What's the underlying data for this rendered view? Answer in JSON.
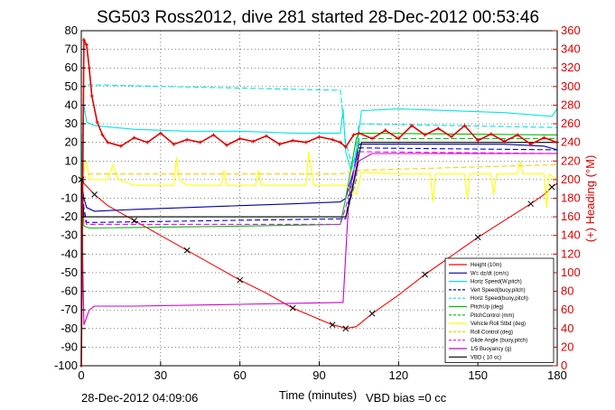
{
  "chart_data": {
    "type": "line",
    "title": "SG503 Ross2012, dive 281 started 28-Dec-2012 00:53:46",
    "xlabel": "Time (minutes)",
    "ylabel_right": "(+) Heading (°M)",
    "xlim": [
      0,
      180
    ],
    "ylim_left": [
      -100,
      80
    ],
    "ylim_right": [
      0,
      360
    ],
    "xticks": [
      0,
      30,
      60,
      90,
      120,
      150,
      180
    ],
    "yticks_left": [
      -100,
      -90,
      -80,
      -70,
      -60,
      -50,
      -40,
      -30,
      -20,
      -10,
      0,
      10,
      20,
      30,
      40,
      50,
      60,
      70,
      80
    ],
    "yticks_right": [
      0,
      20,
      40,
      60,
      80,
      100,
      120,
      140,
      160,
      180,
      200,
      220,
      240,
      260,
      280,
      300,
      320,
      340,
      360
    ],
    "legend_position": "bottom-right",
    "grid": true,
    "series": [
      {
        "name": "Height (10m)",
        "color": "#ff0000",
        "dash": "",
        "x": [
          0,
          1,
          5,
          10,
          20,
          30,
          40,
          50,
          60,
          70,
          80,
          90,
          95,
          98,
          100,
          104,
          110,
          120,
          130,
          140,
          150,
          160,
          170,
          175,
          178,
          180
        ],
        "y": [
          0,
          -2,
          -8,
          -14,
          -22,
          -30,
          -38,
          -46,
          -54,
          -61,
          -69,
          -75,
          -78,
          -79,
          -80,
          -79,
          -72,
          -62,
          -51,
          -41,
          -31,
          -22,
          -13,
          -8,
          -4,
          -2
        ]
      },
      {
        "name": "W= dz/dt (cm/s)",
        "color": "#0000aa",
        "dash": "",
        "x": [
          0,
          1,
          2,
          5,
          20,
          40,
          60,
          80,
          98,
          100,
          103,
          105,
          120,
          140,
          160,
          175,
          180
        ],
        "y": [
          0,
          -10,
          -15,
          -17,
          -16,
          -15,
          -14,
          -13,
          -12,
          -10,
          5,
          19,
          19,
          19,
          19,
          18,
          16
        ]
      },
      {
        "name": "Horiz Speed(W,pitch)",
        "color": "#00e5e5",
        "dash": "",
        "x": [
          0,
          1,
          2,
          5,
          20,
          40,
          60,
          80,
          98,
          99,
          100,
          102,
          104,
          106,
          120,
          140,
          160,
          178,
          180
        ],
        "y": [
          0,
          40,
          31,
          29,
          27,
          26,
          26,
          25,
          25,
          38,
          15,
          5,
          15,
          37,
          38,
          37,
          36,
          34,
          38
        ]
      },
      {
        "name": "Vert Speed(buoy,pitch)",
        "color": "#0000ff",
        "dash": "6,3",
        "x": [
          0,
          1,
          2,
          5,
          100,
          103,
          105,
          180
        ],
        "y": [
          0,
          -15,
          -23,
          -23,
          -21,
          5,
          17,
          16
        ]
      },
      {
        "name": "Horiz Speed(buoy,pitch)",
        "color": "#00e5e5",
        "dash": "6,3",
        "x": [
          0,
          1,
          2,
          98,
          100,
          103,
          105,
          180
        ],
        "y": [
          0,
          50,
          51,
          48,
          20,
          5,
          30,
          28
        ]
      },
      {
        "name": "PitchUp (deg)",
        "color": "#00c000",
        "dash": "",
        "x": [
          0,
          1,
          3,
          60,
          98,
          100,
          104,
          105,
          180
        ],
        "y": [
          0,
          -25,
          -26,
          -25,
          -24,
          -10,
          22,
          25,
          24
        ]
      },
      {
        "name": "PitchControl (mm)",
        "color": "#00c000",
        "dash": "6,3",
        "x": [
          0,
          1,
          3,
          98,
          100,
          104,
          105,
          180
        ],
        "y": [
          0,
          -20,
          -20,
          -20,
          -20,
          0,
          22,
          22
        ]
      },
      {
        "name": "Vehicle Roll Stbd (deg)",
        "color": "#ffff00",
        "dash": "",
        "x": [
          0,
          2,
          3,
          10,
          12,
          14,
          20,
          35,
          36,
          37,
          40,
          53,
          54,
          55,
          58,
          66,
          67,
          68,
          80,
          85,
          86,
          88,
          98,
          100,
          104,
          106,
          120,
          132,
          133,
          134,
          145,
          146,
          147,
          155,
          156,
          157,
          165,
          166,
          167,
          175,
          176,
          177,
          180
        ],
        "y": [
          0,
          10,
          0,
          0,
          8,
          0,
          -3,
          -3,
          12,
          0,
          -3,
          -3,
          5,
          -3,
          -3,
          -3,
          5,
          -3,
          -3,
          -3,
          15,
          -3,
          -3,
          -3,
          -8,
          4,
          3,
          3,
          -12,
          3,
          3,
          -10,
          3,
          3,
          -8,
          3,
          3,
          10,
          3,
          3,
          -15,
          3,
          0
        ]
      },
      {
        "name": "Roll Control (deg)",
        "color": "#ffcc00",
        "dash": "6,3",
        "x": [
          0,
          3,
          98,
          104,
          180
        ],
        "y": [
          0,
          3,
          3,
          5,
          8
        ]
      },
      {
        "name": "Glide Angle (buoy,pitch)",
        "color": "#ff00ff",
        "dash": "6,3",
        "x": [
          0,
          1,
          2,
          98,
          100,
          104,
          105,
          180
        ],
        "y": [
          0,
          -20,
          -24,
          -24,
          -15,
          10,
          15,
          14
        ]
      },
      {
        "name": "1/5 Buoyancy (g)",
        "color": "#cc00cc",
        "dash": "",
        "x": [
          0,
          1,
          3,
          5,
          20,
          60,
          98,
          99,
          101,
          105,
          110,
          180
        ],
        "y": [
          0,
          -78,
          -70,
          -68,
          -68,
          -67,
          -66,
          -66,
          -15,
          10,
          14,
          14
        ]
      },
      {
        "name": "VBD ( 10 cc)",
        "color": "#000000",
        "dash": "",
        "x": [
          0,
          1,
          100,
          101,
          106,
          180
        ],
        "y": [
          0,
          -20,
          -20,
          -15,
          20,
          20
        ]
      },
      {
        "name": "Heading",
        "color": "#e00000",
        "dash": "",
        "axis": "right",
        "x": [
          0,
          1,
          2,
          3,
          4,
          6,
          8,
          10,
          15,
          20,
          25,
          30,
          35,
          40,
          45,
          50,
          55,
          60,
          65,
          70,
          75,
          80,
          85,
          90,
          95,
          98,
          100,
          103,
          105,
          110,
          115,
          120,
          125,
          130,
          135,
          140,
          145,
          150,
          155,
          160,
          165,
          170,
          175,
          180
        ],
        "y": [
          0,
          350,
          345,
          320,
          290,
          262,
          248,
          240,
          236,
          245,
          240,
          250,
          238,
          243,
          240,
          248,
          237,
          244,
          241,
          247,
          238,
          242,
          240,
          246,
          243,
          240,
          235,
          248,
          250,
          244,
          253,
          244,
          258,
          248,
          255,
          246,
          258,
          242,
          249,
          241,
          248,
          238,
          245,
          240
        ]
      }
    ]
  },
  "footer": {
    "timestamp": "28-Dec-2012 04:09:06",
    "vbd_bias": "VBD bias =0 cc"
  }
}
